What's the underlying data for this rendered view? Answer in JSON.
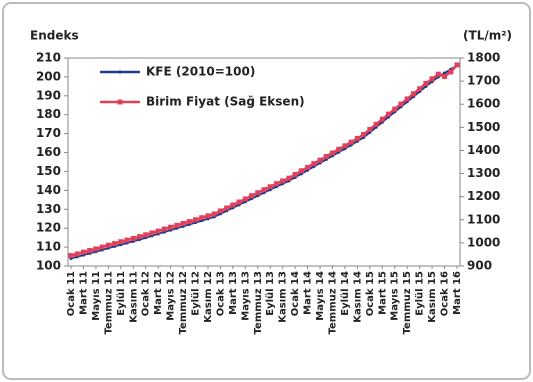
{
  "chart_data": {
    "type": "line",
    "y_label": "Endeks",
    "y2_label": "(TL/m²)",
    "categories": [
      "Ocak 11",
      null,
      "Mart 11",
      null,
      "Mayıs 11",
      null,
      "Temmuz 11",
      null,
      "Eylül 11",
      null,
      "Kasım 11",
      null,
      "Ocak 12",
      null,
      "Mart 12",
      null,
      "Mayıs 12",
      null,
      "Temmuz 12",
      null,
      "Eylül 12",
      null,
      "Kasım 12",
      null,
      "Ocak 13",
      null,
      "Mart 13",
      null,
      "Mayıs 13",
      null,
      "Temmuz 13",
      null,
      "Eylül 13",
      null,
      "Kasım 13",
      null,
      "Ocak 14",
      null,
      "Mart 14",
      null,
      "Mayıs 14",
      null,
      "Temmuz 14",
      null,
      "Eylül 14",
      null,
      "Kasım 14",
      null,
      "Ocak 15",
      null,
      "Mart 15",
      null,
      "Mayıs 15",
      null,
      "Temmuz 15",
      null,
      "Eylül 15",
      null,
      "Kasım 15",
      null,
      "Ocak 16",
      null,
      "Mart 16"
    ],
    "series": [
      {
        "name": "KFE (2010=100)",
        "color": "#1f3a8a",
        "axis": "y",
        "marker": "circle",
        "values": [
          104.0,
          104.9,
          105.8,
          106.7,
          107.6,
          108.5,
          109.5,
          110.4,
          111.3,
          112.2,
          113.1,
          114.0,
          115.0,
          116.0,
          117.0,
          118.0,
          119.0,
          120.0,
          121.0,
          122.0,
          123.0,
          124.0,
          125.0,
          126.0,
          127.6,
          129.2,
          130.8,
          132.4,
          134.0,
          135.6,
          137.2,
          138.8,
          140.4,
          142.0,
          143.5,
          145.0,
          146.9,
          148.8,
          150.7,
          152.6,
          154.5,
          156.4,
          158.3,
          160.2,
          162.1,
          164.0,
          166.0,
          168.0,
          170.7,
          173.4,
          176.1,
          178.8,
          181.5,
          184.2,
          186.9,
          189.6,
          192.3,
          195.0,
          197.5,
          200.0,
          202.0,
          204.0,
          206.0
        ]
      },
      {
        "name": "Birim Fiyat (Sağ Eksen)",
        "color": "#e0405a",
        "axis": "y2",
        "marker": "square",
        "values": [
          945,
          952,
          960,
          967,
          974,
          982,
          990,
          997,
          1005,
          1012,
          1019,
          1027,
          1035,
          1043,
          1051,
          1060,
          1068,
          1076,
          1084,
          1092,
          1100,
          1109,
          1117,
          1125,
          1138,
          1151,
          1164,
          1177,
          1190,
          1204,
          1217,
          1230,
          1243,
          1256,
          1268,
          1280,
          1296,
          1312,
          1327,
          1343,
          1358,
          1374,
          1389,
          1405,
          1420,
          1436,
          1452,
          1469,
          1491,
          1513,
          1535,
          1557,
          1579,
          1601,
          1623,
          1645,
          1667,
          1690,
          1710,
          1730,
          1720,
          1740,
          1770
        ]
      }
    ],
    "ylim": [
      100,
      210
    ],
    "yticks": [
      100,
      110,
      120,
      130,
      140,
      150,
      160,
      170,
      180,
      190,
      200,
      210
    ],
    "y2lim": [
      900,
      1800
    ],
    "y2ticks": [
      900,
      1000,
      1100,
      1200,
      1300,
      1400,
      1500,
      1600,
      1700,
      1800
    ],
    "grid": false,
    "legend": "top-left"
  }
}
